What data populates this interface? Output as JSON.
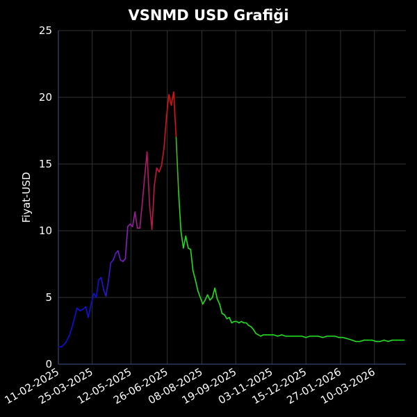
{
  "chart_data": {
    "type": "line",
    "title": "VSNMD USD Grafiği",
    "xlabel": "",
    "ylabel": "Fiyat-USD",
    "xlim": [
      "2025-02-11",
      "2026-04-18"
    ],
    "ylim": [
      0,
      25
    ],
    "grid": true,
    "legend": "none",
    "x_ticks": [
      "11-02-2025",
      "25-03-2025",
      "12-05-2025",
      "26-06-2025",
      "08-08-2025",
      "19-09-2025",
      "03-11-2025",
      "15-12-2025",
      "27-01-2026",
      "10-03-2026"
    ],
    "y_ticks": [
      0,
      5,
      10,
      15,
      20,
      25
    ],
    "line_colors": {
      "start": "#1010dd",
      "mid_up": "#9020c0",
      "peak": "#e01010",
      "end": "#20e020"
    },
    "background": "#000000",
    "series": [
      {
        "x": [
          "2025-02-11",
          "2025-02-15",
          "2025-02-20",
          "2025-02-25",
          "2025-03-01",
          "2025-03-06",
          "2025-03-10",
          "2025-03-13",
          "2025-03-17",
          "2025-03-20",
          "2025-03-24",
          "2025-03-27",
          "2025-03-30",
          "2025-04-02",
          "2025-04-05",
          "2025-04-08",
          "2025-04-11",
          "2025-04-14",
          "2025-04-17",
          "2025-04-20",
          "2025-04-23",
          "2025-04-26",
          "2025-04-29",
          "2025-05-02",
          "2025-05-05",
          "2025-05-08",
          "2025-05-11",
          "2025-05-14",
          "2025-05-17",
          "2025-05-20",
          "2025-05-23",
          "2025-05-26",
          "2025-05-29",
          "2025-06-01",
          "2025-06-04",
          "2025-06-07",
          "2025-06-10",
          "2025-06-13",
          "2025-06-16",
          "2025-06-19",
          "2025-06-22",
          "2025-06-25",
          "2025-06-28",
          "2025-07-01",
          "2025-07-04",
          "2025-07-07",
          "2025-07-10",
          "2025-07-13",
          "2025-07-16",
          "2025-07-19",
          "2025-07-22",
          "2025-07-25",
          "2025-07-28",
          "2025-07-31",
          "2025-08-03",
          "2025-08-06",
          "2025-08-09",
          "2025-08-12",
          "2025-08-15",
          "2025-08-18",
          "2025-08-21",
          "2025-08-24",
          "2025-08-27",
          "2025-08-30",
          "2025-09-02",
          "2025-09-05",
          "2025-09-08",
          "2025-09-11",
          "2025-09-14",
          "2025-09-17",
          "2025-09-20",
          "2025-09-23",
          "2025-09-26",
          "2025-09-29",
          "2025-10-02",
          "2025-10-05",
          "2025-10-08",
          "2025-10-11",
          "2025-10-14",
          "2025-10-17",
          "2025-10-20",
          "2025-10-23",
          "2025-10-26",
          "2025-10-29",
          "2025-11-01",
          "2025-11-05",
          "2025-11-10",
          "2025-11-15",
          "2025-11-20",
          "2025-11-25",
          "2025-11-30",
          "2025-12-05",
          "2025-12-10",
          "2025-12-15",
          "2025-12-20",
          "2025-12-25",
          "2025-12-30",
          "2026-01-05",
          "2026-01-10",
          "2026-01-15",
          "2026-01-20",
          "2026-01-25",
          "2026-01-30",
          "2026-02-05",
          "2026-02-10",
          "2026-02-15",
          "2026-02-20",
          "2026-02-25",
          "2026-03-02",
          "2026-03-07",
          "2026-03-12",
          "2026-03-17",
          "2026-03-22",
          "2026-03-27",
          "2026-04-01",
          "2026-04-06",
          "2026-04-11",
          "2026-04-16"
        ],
        "values": [
          1.3,
          1.3,
          1.6,
          2.2,
          3.0,
          4.2,
          4.0,
          4.1,
          4.3,
          3.5,
          4.6,
          5.3,
          5.0,
          6.3,
          6.5,
          5.6,
          5.1,
          6.2,
          7.6,
          7.8,
          8.3,
          8.5,
          7.8,
          7.7,
          7.9,
          10.3,
          10.5,
          10.3,
          11.4,
          10.2,
          10.2,
          12.0,
          14.0,
          15.9,
          12.0,
          10.1,
          13.4,
          14.7,
          14.4,
          14.9,
          16.2,
          18.5,
          20.2,
          19.4,
          20.4,
          17.0,
          13.0,
          10.0,
          8.7,
          9.6,
          8.7,
          8.6,
          7.0,
          6.3,
          5.5,
          5.0,
          4.5,
          4.8,
          5.2,
          4.8,
          5.0,
          5.7,
          4.9,
          4.5,
          3.8,
          3.7,
          3.4,
          3.5,
          3.1,
          3.2,
          3.2,
          3.1,
          3.2,
          3.1,
          3.1,
          2.9,
          2.8,
          2.6,
          2.3,
          2.2,
          2.1,
          2.2,
          2.2,
          2.2,
          2.2,
          2.2,
          2.1,
          2.2,
          2.1,
          2.1,
          2.1,
          2.1,
          2.1,
          2.0,
          2.1,
          2.1,
          2.1,
          2.0,
          2.1,
          2.1,
          2.1,
          2.0,
          2.0,
          1.9,
          1.8,
          1.7,
          1.7,
          1.8,
          1.8,
          1.8,
          1.7,
          1.7,
          1.8,
          1.7,
          1.8,
          1.8,
          1.8,
          1.8
        ]
      }
    ]
  }
}
